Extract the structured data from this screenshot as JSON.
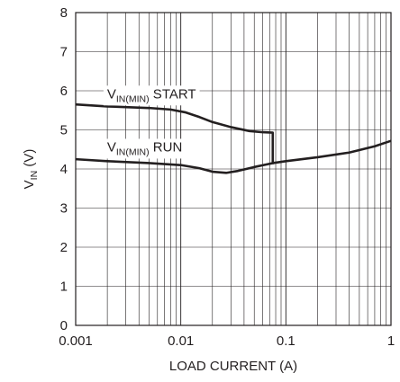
{
  "chart_data": {
    "type": "line",
    "title": "",
    "xlabel": "LOAD CURRENT (A)",
    "ylabel": {
      "main": "V",
      "sub": "IN",
      "rest": " (V)"
    },
    "x_scale": "log",
    "xlim": [
      0.001,
      1
    ],
    "ylim": [
      0,
      8
    ],
    "x_ticks": [
      {
        "value": 0.001,
        "label": "0.001"
      },
      {
        "value": 0.01,
        "label": "0.01"
      },
      {
        "value": 0.1,
        "label": "0.1"
      },
      {
        "value": 1,
        "label": "1"
      }
    ],
    "y_ticks": [
      {
        "value": 0,
        "label": "0"
      },
      {
        "value": 1,
        "label": "1"
      },
      {
        "value": 2,
        "label": "2"
      },
      {
        "value": 3,
        "label": "3"
      },
      {
        "value": 4,
        "label": "4"
      },
      {
        "value": 5,
        "label": "5"
      },
      {
        "value": 6,
        "label": "6"
      },
      {
        "value": 7,
        "label": "7"
      },
      {
        "value": 8,
        "label": "8"
      }
    ],
    "grid": true,
    "line_color": "#231f20",
    "series": [
      {
        "name": "START",
        "label_main": "V",
        "label_sub": "IN(MIN)",
        "label_rest": " START",
        "points": [
          [
            0.001,
            5.65
          ],
          [
            0.002,
            5.6
          ],
          [
            0.005,
            5.56
          ],
          [
            0.008,
            5.52
          ],
          [
            0.011,
            5.45
          ],
          [
            0.015,
            5.33
          ],
          [
            0.02,
            5.2
          ],
          [
            0.03,
            5.07
          ],
          [
            0.045,
            4.97
          ],
          [
            0.06,
            4.94
          ],
          [
            0.075,
            4.93
          ],
          [
            0.075,
            4.12
          ]
        ]
      },
      {
        "name": "RUN",
        "label_main": "V",
        "label_sub": "IN(MIN)",
        "label_rest": " RUN",
        "points": [
          [
            0.001,
            4.25
          ],
          [
            0.002,
            4.2
          ],
          [
            0.005,
            4.15
          ],
          [
            0.01,
            4.1
          ],
          [
            0.015,
            4.02
          ],
          [
            0.02,
            3.93
          ],
          [
            0.027,
            3.9
          ],
          [
            0.035,
            3.95
          ],
          [
            0.05,
            4.05
          ],
          [
            0.075,
            4.15
          ],
          [
            0.1,
            4.2
          ],
          [
            0.2,
            4.3
          ],
          [
            0.4,
            4.42
          ],
          [
            0.7,
            4.58
          ],
          [
            1,
            4.72
          ]
        ]
      }
    ]
  }
}
